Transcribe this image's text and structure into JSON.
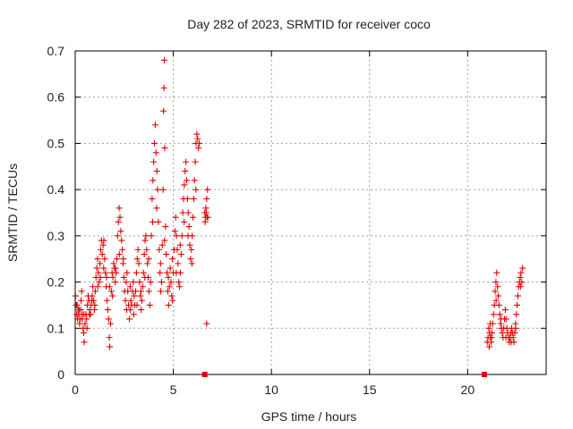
{
  "chart_data": {
    "type": "scatter",
    "title": "Day 282 of 2023, SRMTID for receiver coco",
    "xlabel": "GPS time / hours",
    "ylabel": "SRMTID / TECUs",
    "xlim": [
      0,
      24
    ],
    "ylim": [
      0,
      0.7
    ],
    "x_ticks": [
      0,
      5,
      10,
      15,
      20
    ],
    "y_ticks": [
      0,
      0.1,
      0.2,
      0.3,
      0.4,
      0.5,
      0.6,
      0.7
    ],
    "x_tick_labels": [
      "0",
      "5",
      "10",
      "15",
      "20"
    ],
    "y_tick_labels": [
      "0",
      "0.1",
      "0.2",
      "0.3",
      "0.4",
      "0.5",
      "0.6",
      "0.7"
    ],
    "grid": true,
    "marker": "plus",
    "color": "#e00000",
    "series": [
      {
        "name": "SRMTID",
        "points": [
          [
            0.02,
            0.17
          ],
          [
            0.05,
            0.15
          ],
          [
            0.08,
            0.13
          ],
          [
            0.12,
            0.12
          ],
          [
            0.15,
            0.14
          ],
          [
            0.18,
            0.13
          ],
          [
            0.22,
            0.11
          ],
          [
            0.25,
            0.12
          ],
          [
            0.28,
            0.14
          ],
          [
            0.3,
            0.16
          ],
          [
            0.33,
            0.18
          ],
          [
            0.36,
            0.13
          ],
          [
            0.4,
            0.1
          ],
          [
            0.43,
            0.09
          ],
          [
            0.46,
            0.07
          ],
          [
            0.5,
            0.11
          ],
          [
            0.55,
            0.13
          ],
          [
            0.58,
            0.12
          ],
          [
            0.62,
            0.15
          ],
          [
            0.66,
            0.17
          ],
          [
            0.7,
            0.16
          ],
          [
            0.74,
            0.14
          ],
          [
            0.78,
            0.13
          ],
          [
            0.82,
            0.15
          ],
          [
            0.86,
            0.17
          ],
          [
            0.9,
            0.19
          ],
          [
            0.94,
            0.16
          ],
          [
            0.98,
            0.14
          ],
          [
            1.02,
            0.18
          ],
          [
            1.06,
            0.21
          ],
          [
            1.1,
            0.23
          ],
          [
            1.14,
            0.25
          ],
          [
            1.18,
            0.22
          ],
          [
            1.22,
            0.2
          ],
          [
            1.26,
            0.24
          ],
          [
            1.3,
            0.27
          ],
          [
            1.34,
            0.29
          ],
          [
            1.38,
            0.26
          ],
          [
            1.42,
            0.28
          ],
          [
            1.46,
            0.29
          ],
          [
            1.5,
            0.25
          ],
          [
            1.54,
            0.22
          ],
          [
            1.58,
            0.19
          ],
          [
            1.62,
            0.16
          ],
          [
            1.66,
            0.14
          ],
          [
            1.7,
            0.12
          ],
          [
            1.74,
            0.08
          ],
          [
            1.76,
            0.06
          ],
          [
            1.8,
            0.11
          ],
          [
            1.84,
            0.18
          ],
          [
            1.88,
            0.22
          ],
          [
            1.92,
            0.21
          ],
          [
            1.96,
            0.24
          ],
          [
            2.0,
            0.23
          ],
          [
            2.04,
            0.2
          ],
          [
            2.08,
            0.22
          ],
          [
            2.12,
            0.25
          ],
          [
            2.16,
            0.3
          ],
          [
            2.2,
            0.33
          ],
          [
            2.24,
            0.36
          ],
          [
            2.28,
            0.34
          ],
          [
            2.32,
            0.31
          ],
          [
            2.36,
            0.29
          ],
          [
            2.4,
            0.27
          ],
          [
            2.44,
            0.24
          ],
          [
            2.48,
            0.21
          ],
          [
            2.52,
            0.18
          ],
          [
            2.56,
            0.16
          ],
          [
            2.6,
            0.2
          ],
          [
            2.64,
            0.22
          ],
          [
            2.68,
            0.18
          ],
          [
            2.72,
            0.15
          ],
          [
            2.76,
            0.12
          ],
          [
            2.8,
            0.14
          ],
          [
            2.84,
            0.16
          ],
          [
            2.88,
            0.15
          ],
          [
            2.92,
            0.18
          ],
          [
            2.96,
            0.2
          ],
          [
            3.0,
            0.17
          ],
          [
            3.04,
            0.15
          ],
          [
            3.08,
            0.18
          ],
          [
            3.12,
            0.22
          ],
          [
            3.16,
            0.25
          ],
          [
            3.2,
            0.27
          ],
          [
            3.24,
            0.24
          ],
          [
            3.28,
            0.2
          ],
          [
            3.32,
            0.17
          ],
          [
            3.36,
            0.14
          ],
          [
            3.4,
            0.16
          ],
          [
            3.44,
            0.19
          ],
          [
            3.48,
            0.22
          ],
          [
            3.52,
            0.26
          ],
          [
            3.56,
            0.29
          ],
          [
            3.6,
            0.3
          ],
          [
            3.64,
            0.27
          ],
          [
            3.68,
            0.24
          ],
          [
            3.72,
            0.21
          ],
          [
            3.76,
            0.18
          ],
          [
            3.8,
            0.15
          ],
          [
            3.84,
            0.2
          ],
          [
            3.88,
            0.3
          ],
          [
            3.92,
            0.38
          ],
          [
            3.96,
            0.42
          ],
          [
            4.0,
            0.46
          ],
          [
            4.04,
            0.5
          ],
          [
            4.08,
            0.54
          ],
          [
            4.12,
            0.48
          ],
          [
            4.16,
            0.44
          ],
          [
            4.2,
            0.4
          ],
          [
            4.24,
            0.33
          ],
          [
            4.28,
            0.27
          ],
          [
            4.32,
            0.22
          ],
          [
            4.36,
            0.18
          ],
          [
            4.4,
            0.2
          ],
          [
            4.44,
            0.28
          ],
          [
            4.48,
            0.4
          ],
          [
            4.5,
            0.57
          ],
          [
            4.52,
            0.62
          ],
          [
            4.54,
            0.68
          ],
          [
            4.56,
            0.49
          ],
          [
            4.6,
            0.32
          ],
          [
            4.64,
            0.26
          ],
          [
            4.68,
            0.22
          ],
          [
            4.72,
            0.18
          ],
          [
            4.76,
            0.15
          ],
          [
            4.8,
            0.19
          ],
          [
            4.84,
            0.23
          ],
          [
            4.88,
            0.2
          ],
          [
            4.92,
            0.17
          ],
          [
            4.96,
            0.16
          ],
          [
            5.0,
            0.22
          ],
          [
            5.04,
            0.27
          ],
          [
            5.08,
            0.31
          ],
          [
            5.12,
            0.34
          ],
          [
            5.16,
            0.3
          ],
          [
            5.2,
            0.27
          ],
          [
            5.24,
            0.24
          ],
          [
            5.28,
            0.2
          ],
          [
            5.32,
            0.19
          ],
          [
            5.36,
            0.22
          ],
          [
            5.4,
            0.26
          ],
          [
            5.44,
            0.3
          ],
          [
            5.48,
            0.35
          ],
          [
            5.52,
            0.38
          ],
          [
            5.56,
            0.41
          ],
          [
            5.6,
            0.44
          ],
          [
            5.64,
            0.46
          ],
          [
            5.68,
            0.42
          ],
          [
            5.72,
            0.38
          ],
          [
            5.76,
            0.35
          ],
          [
            5.8,
            0.32
          ],
          [
            5.84,
            0.28
          ],
          [
            5.88,
            0.25
          ],
          [
            5.92,
            0.27
          ],
          [
            5.96,
            0.3
          ],
          [
            6.0,
            0.34
          ],
          [
            6.04,
            0.38
          ],
          [
            6.08,
            0.42
          ],
          [
            6.12,
            0.46
          ],
          [
            6.16,
            0.5
          ],
          [
            6.2,
            0.52
          ],
          [
            6.24,
            0.51
          ],
          [
            6.28,
            0.49
          ],
          [
            6.32,
            0.5
          ],
          [
            6.6,
            0.35
          ],
          [
            6.62,
            0.33
          ],
          [
            6.64,
            0.34
          ],
          [
            6.66,
            0.36
          ],
          [
            6.68,
            0.35
          ],
          [
            6.7,
            0.38
          ],
          [
            6.72,
            0.34
          ],
          [
            6.74,
            0.4
          ],
          [
            6.76,
            0.34
          ],
          [
            6.7,
            0.11
          ],
          [
            0.1,
            0.15
          ],
          [
            0.2,
            0.14
          ],
          [
            0.35,
            0.12
          ],
          [
            0.45,
            0.13
          ],
          [
            0.6,
            0.1
          ],
          [
            0.72,
            0.13
          ],
          [
            0.85,
            0.16
          ],
          [
            1.0,
            0.15
          ],
          [
            1.15,
            0.19
          ],
          [
            1.28,
            0.21
          ],
          [
            1.45,
            0.23
          ],
          [
            1.6,
            0.21
          ],
          [
            1.75,
            0.19
          ],
          [
            1.9,
            0.17
          ],
          [
            2.05,
            0.23
          ],
          [
            2.25,
            0.26
          ],
          [
            2.45,
            0.25
          ],
          [
            2.62,
            0.14
          ],
          [
            2.8,
            0.19
          ],
          [
            2.98,
            0.13
          ],
          [
            3.15,
            0.15
          ],
          [
            3.35,
            0.18
          ],
          [
            3.55,
            0.21
          ],
          [
            3.75,
            0.25
          ],
          [
            3.95,
            0.33
          ],
          [
            4.15,
            0.36
          ],
          [
            4.35,
            0.24
          ],
          [
            4.55,
            0.29
          ],
          [
            4.75,
            0.21
          ],
          [
            4.95,
            0.25
          ],
          [
            5.15,
            0.22
          ],
          [
            5.35,
            0.28
          ],
          [
            5.55,
            0.33
          ],
          [
            5.75,
            0.3
          ],
          [
            5.95,
            0.24
          ],
          [
            6.15,
            0.4
          ],
          [
            21.0,
            0.07
          ],
          [
            21.04,
            0.08
          ],
          [
            21.08,
            0.1
          ],
          [
            21.12,
            0.09
          ],
          [
            21.16,
            0.08
          ],
          [
            21.2,
            0.07
          ],
          [
            21.24,
            0.09
          ],
          [
            21.28,
            0.11
          ],
          [
            21.32,
            0.13
          ],
          [
            21.36,
            0.15
          ],
          [
            21.4,
            0.18
          ],
          [
            21.44,
            0.2
          ],
          [
            21.48,
            0.22
          ],
          [
            21.52,
            0.19
          ],
          [
            21.56,
            0.17
          ],
          [
            21.6,
            0.15
          ],
          [
            21.64,
            0.13
          ],
          [
            21.68,
            0.11
          ],
          [
            21.72,
            0.1
          ],
          [
            21.76,
            0.09
          ],
          [
            21.8,
            0.08
          ],
          [
            21.84,
            0.1
          ],
          [
            21.88,
            0.12
          ],
          [
            21.92,
            0.14
          ],
          [
            21.96,
            0.12
          ],
          [
            22.0,
            0.1
          ],
          [
            22.04,
            0.09
          ],
          [
            22.08,
            0.08
          ],
          [
            22.12,
            0.07
          ],
          [
            22.16,
            0.08
          ],
          [
            22.2,
            0.09
          ],
          [
            22.24,
            0.1
          ],
          [
            22.28,
            0.09
          ],
          [
            22.32,
            0.08
          ],
          [
            22.36,
            0.07
          ],
          [
            22.4,
            0.09
          ],
          [
            22.44,
            0.11
          ],
          [
            22.48,
            0.13
          ],
          [
            22.52,
            0.15
          ],
          [
            22.56,
            0.17
          ],
          [
            22.6,
            0.19
          ],
          [
            22.64,
            0.2
          ],
          [
            22.68,
            0.21
          ],
          [
            22.72,
            0.22
          ],
          [
            22.76,
            0.2
          ],
          [
            21.1,
            0.06
          ],
          [
            21.22,
            0.08
          ],
          [
            21.45,
            0.16
          ],
          [
            21.7,
            0.12
          ],
          [
            21.95,
            0.08
          ],
          [
            22.22,
            0.07
          ],
          [
            22.45,
            0.1
          ],
          [
            22.7,
            0.19
          ],
          [
            22.8,
            0.23
          ],
          [
            21.15,
            0.11
          ]
        ]
      }
    ],
    "gap_markers": [
      6.6,
      20.85
    ]
  }
}
